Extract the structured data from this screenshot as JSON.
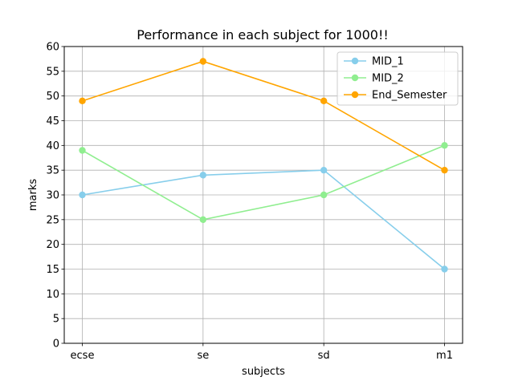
{
  "chart_data": {
    "type": "line",
    "title": "Performance in each subject for 1000!!",
    "xlabel": "subjects",
    "ylabel": "marks",
    "categories": [
      "ecse",
      "se",
      "sd",
      "m1"
    ],
    "ylim": [
      0,
      60
    ],
    "yticks": [
      0,
      5,
      10,
      15,
      20,
      25,
      30,
      35,
      40,
      45,
      50,
      55,
      60
    ],
    "grid": true,
    "legend_position": "top-right",
    "series": [
      {
        "name": "MID_1",
        "color": "#87CEEB",
        "values": [
          30,
          34,
          35,
          15
        ]
      },
      {
        "name": "MID_2",
        "color": "#90EE90",
        "values": [
          39,
          25,
          30,
          40
        ]
      },
      {
        "name": "End_Semester",
        "color": "#FFA500",
        "values": [
          49,
          57,
          49,
          35
        ]
      }
    ]
  }
}
